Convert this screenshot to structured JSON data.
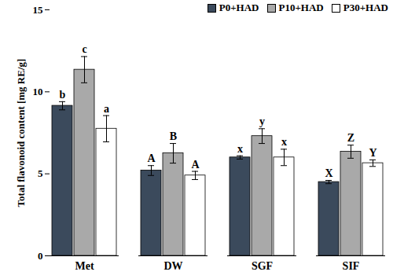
{
  "chart_data": {
    "type": "bar",
    "ylabel": "Total flavonoid content [mg RE/g]",
    "categories": [
      "Met",
      "DW",
      "SGF",
      "SIF"
    ],
    "series": [
      {
        "name": "P0+HAD",
        "color": "#3b4a5c",
        "values": [
          9.15,
          5.2,
          6.0,
          4.5
        ],
        "errors": [
          0.25,
          0.3,
          0.1,
          0.1
        ],
        "annotations": [
          "b",
          "A",
          "x",
          "X"
        ]
      },
      {
        "name": "P10+HAD",
        "color": "#a9a9a9",
        "values": [
          11.35,
          6.25,
          7.3,
          6.35
        ],
        "errors": [
          0.8,
          0.6,
          0.45,
          0.4
        ],
        "annotations": [
          "c",
          "B",
          "y",
          "Z"
        ]
      },
      {
        "name": "P30+HAD",
        "color": "#ffffff",
        "values": [
          7.75,
          4.9,
          6.0,
          5.65
        ],
        "errors": [
          0.8,
          0.25,
          0.5,
          0.2
        ],
        "annotations": [
          "a",
          "A",
          "x",
          "Y"
        ]
      }
    ],
    "ylim": [
      0,
      15
    ],
    "yticks": [
      0,
      5,
      10,
      15
    ],
    "grid": false,
    "legend": "top right"
  }
}
